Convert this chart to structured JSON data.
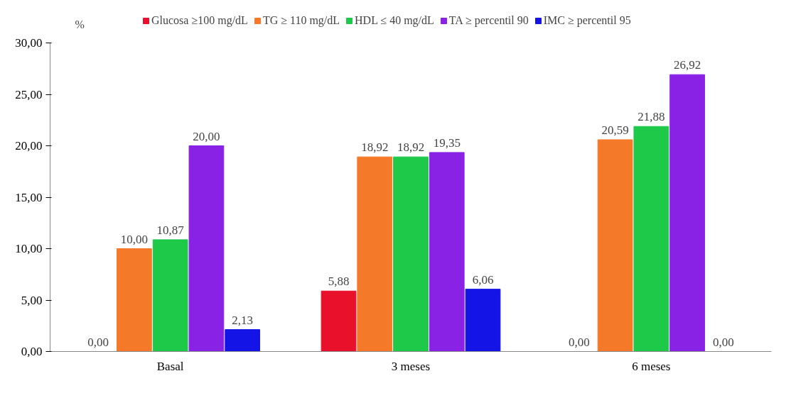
{
  "chart_data": {
    "type": "bar",
    "ylabel": "%",
    "categories": [
      "Basal",
      "3 meses",
      "6 meses"
    ],
    "series": [
      {
        "name": "Glucosa ≥100 mg/dL",
        "color": "#e8102a",
        "values": [
          0.0,
          5.88,
          0.0
        ],
        "value_labels": [
          "0,00",
          "5,88",
          "0,00"
        ]
      },
      {
        "name": "TG ≥ 110 mg/dL",
        "color": "#f47a2a",
        "values": [
          10.0,
          18.92,
          20.59
        ],
        "value_labels": [
          "10,00",
          "18,92",
          "20,59"
        ]
      },
      {
        "name": "HDL ≤ 40 mg/dL",
        "color": "#1ec94a",
        "values": [
          10.87,
          18.92,
          21.88
        ],
        "value_labels": [
          "10,87",
          "18,92",
          "21,88"
        ]
      },
      {
        "name": "TA ≥ percentil 90",
        "color": "#8a22e6",
        "values": [
          20.0,
          19.35,
          26.92
        ],
        "value_labels": [
          "20,00",
          "19,35",
          "26,92"
        ]
      },
      {
        "name": "IMC ≥ percentil 95",
        "color": "#1414e6",
        "values": [
          2.13,
          6.06,
          0.0
        ],
        "value_labels": [
          "2,13",
          "6,06",
          "0,00"
        ]
      }
    ],
    "ylim": [
      0,
      30
    ],
    "yticks": [
      {
        "value": 0,
        "label": "0,00"
      },
      {
        "value": 5,
        "label": "5,00"
      },
      {
        "value": 10,
        "label": "10,00"
      },
      {
        "value": 15,
        "label": "15,00"
      },
      {
        "value": 20,
        "label": "20,00"
      },
      {
        "value": 25,
        "label": "25,00"
      },
      {
        "value": 30,
        "label": "30,00"
      }
    ],
    "grid": false,
    "legend": "top"
  }
}
